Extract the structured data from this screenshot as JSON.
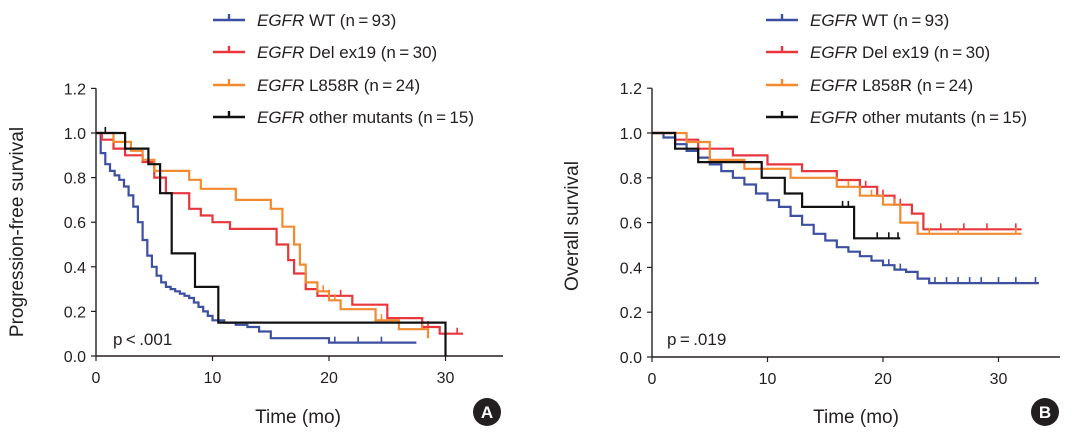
{
  "chart_data": [
    {
      "type": "line",
      "subtype": "kaplan-meier",
      "panel_label": "A",
      "xlabel": "Time (mo)",
      "ylabel": "Progression-free survival",
      "xlim": [
        0,
        35
      ],
      "ylim": [
        0,
        1.2
      ],
      "xticks": [
        0,
        10,
        20,
        30
      ],
      "xtick_labels": [
        "0",
        "10",
        "20",
        "30"
      ],
      "yticks": [
        0,
        0.2,
        0.4,
        0.6,
        0.8,
        1.0,
        1.2
      ],
      "ytick_labels": [
        "0.0",
        "0.2",
        "0.4",
        "0.6",
        "0.8",
        "1.0",
        "1.2"
      ],
      "annotation": "p < .001",
      "legend_position": "top",
      "series": [
        {
          "gene": "EGFR",
          "label_rest": " WT (n = 93)",
          "color": "#3c4fa0",
          "x": [
            0,
            0.4,
            0.8,
            1.2,
            1.6,
            2.0,
            2.4,
            2.8,
            3.2,
            3.6,
            4.0,
            4.4,
            4.8,
            5.2,
            5.6,
            6.0,
            6.4,
            6.8,
            7.2,
            7.6,
            8.0,
            8.4,
            8.8,
            9.2,
            9.6,
            10.0,
            10.5,
            11,
            12,
            13,
            14,
            15,
            17,
            20,
            24,
            27.5
          ],
          "y": [
            1.0,
            0.91,
            0.86,
            0.83,
            0.81,
            0.79,
            0.76,
            0.72,
            0.67,
            0.6,
            0.52,
            0.45,
            0.4,
            0.36,
            0.33,
            0.31,
            0.3,
            0.29,
            0.28,
            0.27,
            0.26,
            0.24,
            0.22,
            0.2,
            0.18,
            0.16,
            0.16,
            0.15,
            0.14,
            0.13,
            0.11,
            0.08,
            0.08,
            0.06,
            0.06,
            0.06
          ],
          "censor_x": [
            20.5,
            22.5,
            24.5
          ]
        },
        {
          "gene": "EGFR",
          "label_rest": " Del ex19 (n = 30)",
          "color": "#e8363d",
          "x": [
            0,
            0.5,
            1.5,
            2.5,
            4.0,
            5.0,
            6.0,
            8.0,
            9.0,
            10.0,
            11.5,
            13.5,
            15.5,
            16.5,
            17.0,
            18.0,
            19.0,
            22.0,
            25.0,
            28.0,
            29.5,
            31.5
          ],
          "y": [
            1.0,
            0.97,
            0.93,
            0.9,
            0.87,
            0.8,
            0.73,
            0.66,
            0.63,
            0.6,
            0.57,
            0.57,
            0.5,
            0.43,
            0.37,
            0.3,
            0.27,
            0.23,
            0.17,
            0.13,
            0.1,
            0.1
          ],
          "censor_x": [
            20.0,
            21.0,
            28.5,
            31.0
          ]
        },
        {
          "gene": "EGFR",
          "label_rest": " L858R (n = 24)",
          "color": "#f28a30",
          "x": [
            0,
            1.5,
            3.0,
            4.0,
            5.0,
            8.0,
            9.0,
            12.0,
            15.0,
            16.0,
            17.0,
            17.5,
            18.0,
            19.0,
            20.0,
            21.0,
            24.0,
            26.0,
            28.5
          ],
          "y": [
            1.0,
            0.96,
            0.92,
            0.88,
            0.83,
            0.79,
            0.75,
            0.7,
            0.66,
            0.58,
            0.5,
            0.41,
            0.33,
            0.29,
            0.25,
            0.21,
            0.16,
            0.12,
            0.08
          ],
          "censor_x": [
            19.5,
            20.5,
            24.5,
            28.0
          ]
        },
        {
          "gene": "EGFR",
          "label_rest": " other mutants (n = 15)",
          "color": "#111111",
          "x": [
            0,
            0.8,
            2.5,
            4.5,
            5.5,
            6.5,
            8.5,
            10.5,
            25.0,
            30.0
          ],
          "y": [
            1.0,
            1.0,
            0.93,
            0.86,
            0.73,
            0.46,
            0.31,
            0.15,
            0.15,
            0.0
          ],
          "censor_x": [
            0.8
          ]
        }
      ]
    },
    {
      "type": "line",
      "subtype": "kaplan-meier",
      "panel_label": "B",
      "xlabel": "Time (mo)",
      "ylabel": "Overall survival",
      "xlim": [
        0,
        35
      ],
      "ylim": [
        0,
        1.2
      ],
      "xticks": [
        0,
        10,
        20,
        30
      ],
      "xtick_labels": [
        "0",
        "10",
        "20",
        "30"
      ],
      "yticks": [
        0,
        0.2,
        0.4,
        0.6,
        0.8,
        1.0,
        1.2
      ],
      "ytick_labels": [
        "0.0",
        "0.2",
        "0.4",
        "0.6",
        "0.8",
        "1.0",
        "1.2"
      ],
      "annotation": "p = .019",
      "legend_position": "top",
      "series": [
        {
          "gene": "EGFR",
          "label_rest": " WT (n = 93)",
          "color": "#3c4fa0",
          "x": [
            0,
            1,
            2,
            3,
            4,
            5,
            6,
            7,
            8,
            9,
            10,
            11,
            12,
            13,
            14,
            15,
            16,
            17,
            18,
            19,
            20,
            21,
            22,
            23,
            24,
            26,
            28,
            30,
            33.5
          ],
          "y": [
            1.0,
            0.98,
            0.95,
            0.92,
            0.89,
            0.86,
            0.83,
            0.8,
            0.77,
            0.73,
            0.7,
            0.67,
            0.63,
            0.59,
            0.55,
            0.52,
            0.49,
            0.47,
            0.45,
            0.43,
            0.41,
            0.39,
            0.38,
            0.35,
            0.33,
            0.33,
            0.33,
            0.33,
            0.33
          ],
          "censor_x": [
            20.5,
            21.5,
            24.5,
            25.5,
            26.5,
            27.5,
            28.5,
            30.0,
            31.5,
            33.2
          ]
        },
        {
          "gene": "EGFR",
          "label_rest": " Del ex19 (n = 30)",
          "color": "#e8363d",
          "x": [
            0,
            2,
            4,
            7,
            10,
            13,
            16,
            18,
            19.5,
            21,
            22.5,
            23.5,
            32
          ],
          "y": [
            1.0,
            0.97,
            0.93,
            0.9,
            0.86,
            0.83,
            0.79,
            0.76,
            0.72,
            0.68,
            0.64,
            0.57,
            0.57
          ],
          "censor_x": [
            18.5,
            20.0,
            21.5,
            25.0,
            27.0,
            29.0,
            31.5
          ]
        },
        {
          "gene": "EGFR",
          "label_rest": " L858R (n = 24)",
          "color": "#f28a30",
          "x": [
            0,
            3,
            5,
            8,
            12,
            16,
            18,
            20,
            21.5,
            23,
            32
          ],
          "y": [
            1.0,
            0.96,
            0.88,
            0.84,
            0.8,
            0.76,
            0.72,
            0.68,
            0.6,
            0.55,
            0.55
          ],
          "censor_x": [
            17.0,
            19.0,
            21.0,
            24.0,
            26.5,
            31.5
          ]
        },
        {
          "gene": "EGFR",
          "label_rest": " other mutants (n = 15)",
          "color": "#111111",
          "x": [
            0,
            2,
            4,
            9.5,
            10.5,
            11.5,
            13,
            17.5,
            21.5
          ],
          "y": [
            1.0,
            0.93,
            0.87,
            0.8,
            0.8,
            0.73,
            0.67,
            0.53,
            0.53
          ],
          "censor_x": [
            16.5,
            17.0,
            19.5,
            20.5,
            21.3
          ]
        }
      ]
    }
  ]
}
